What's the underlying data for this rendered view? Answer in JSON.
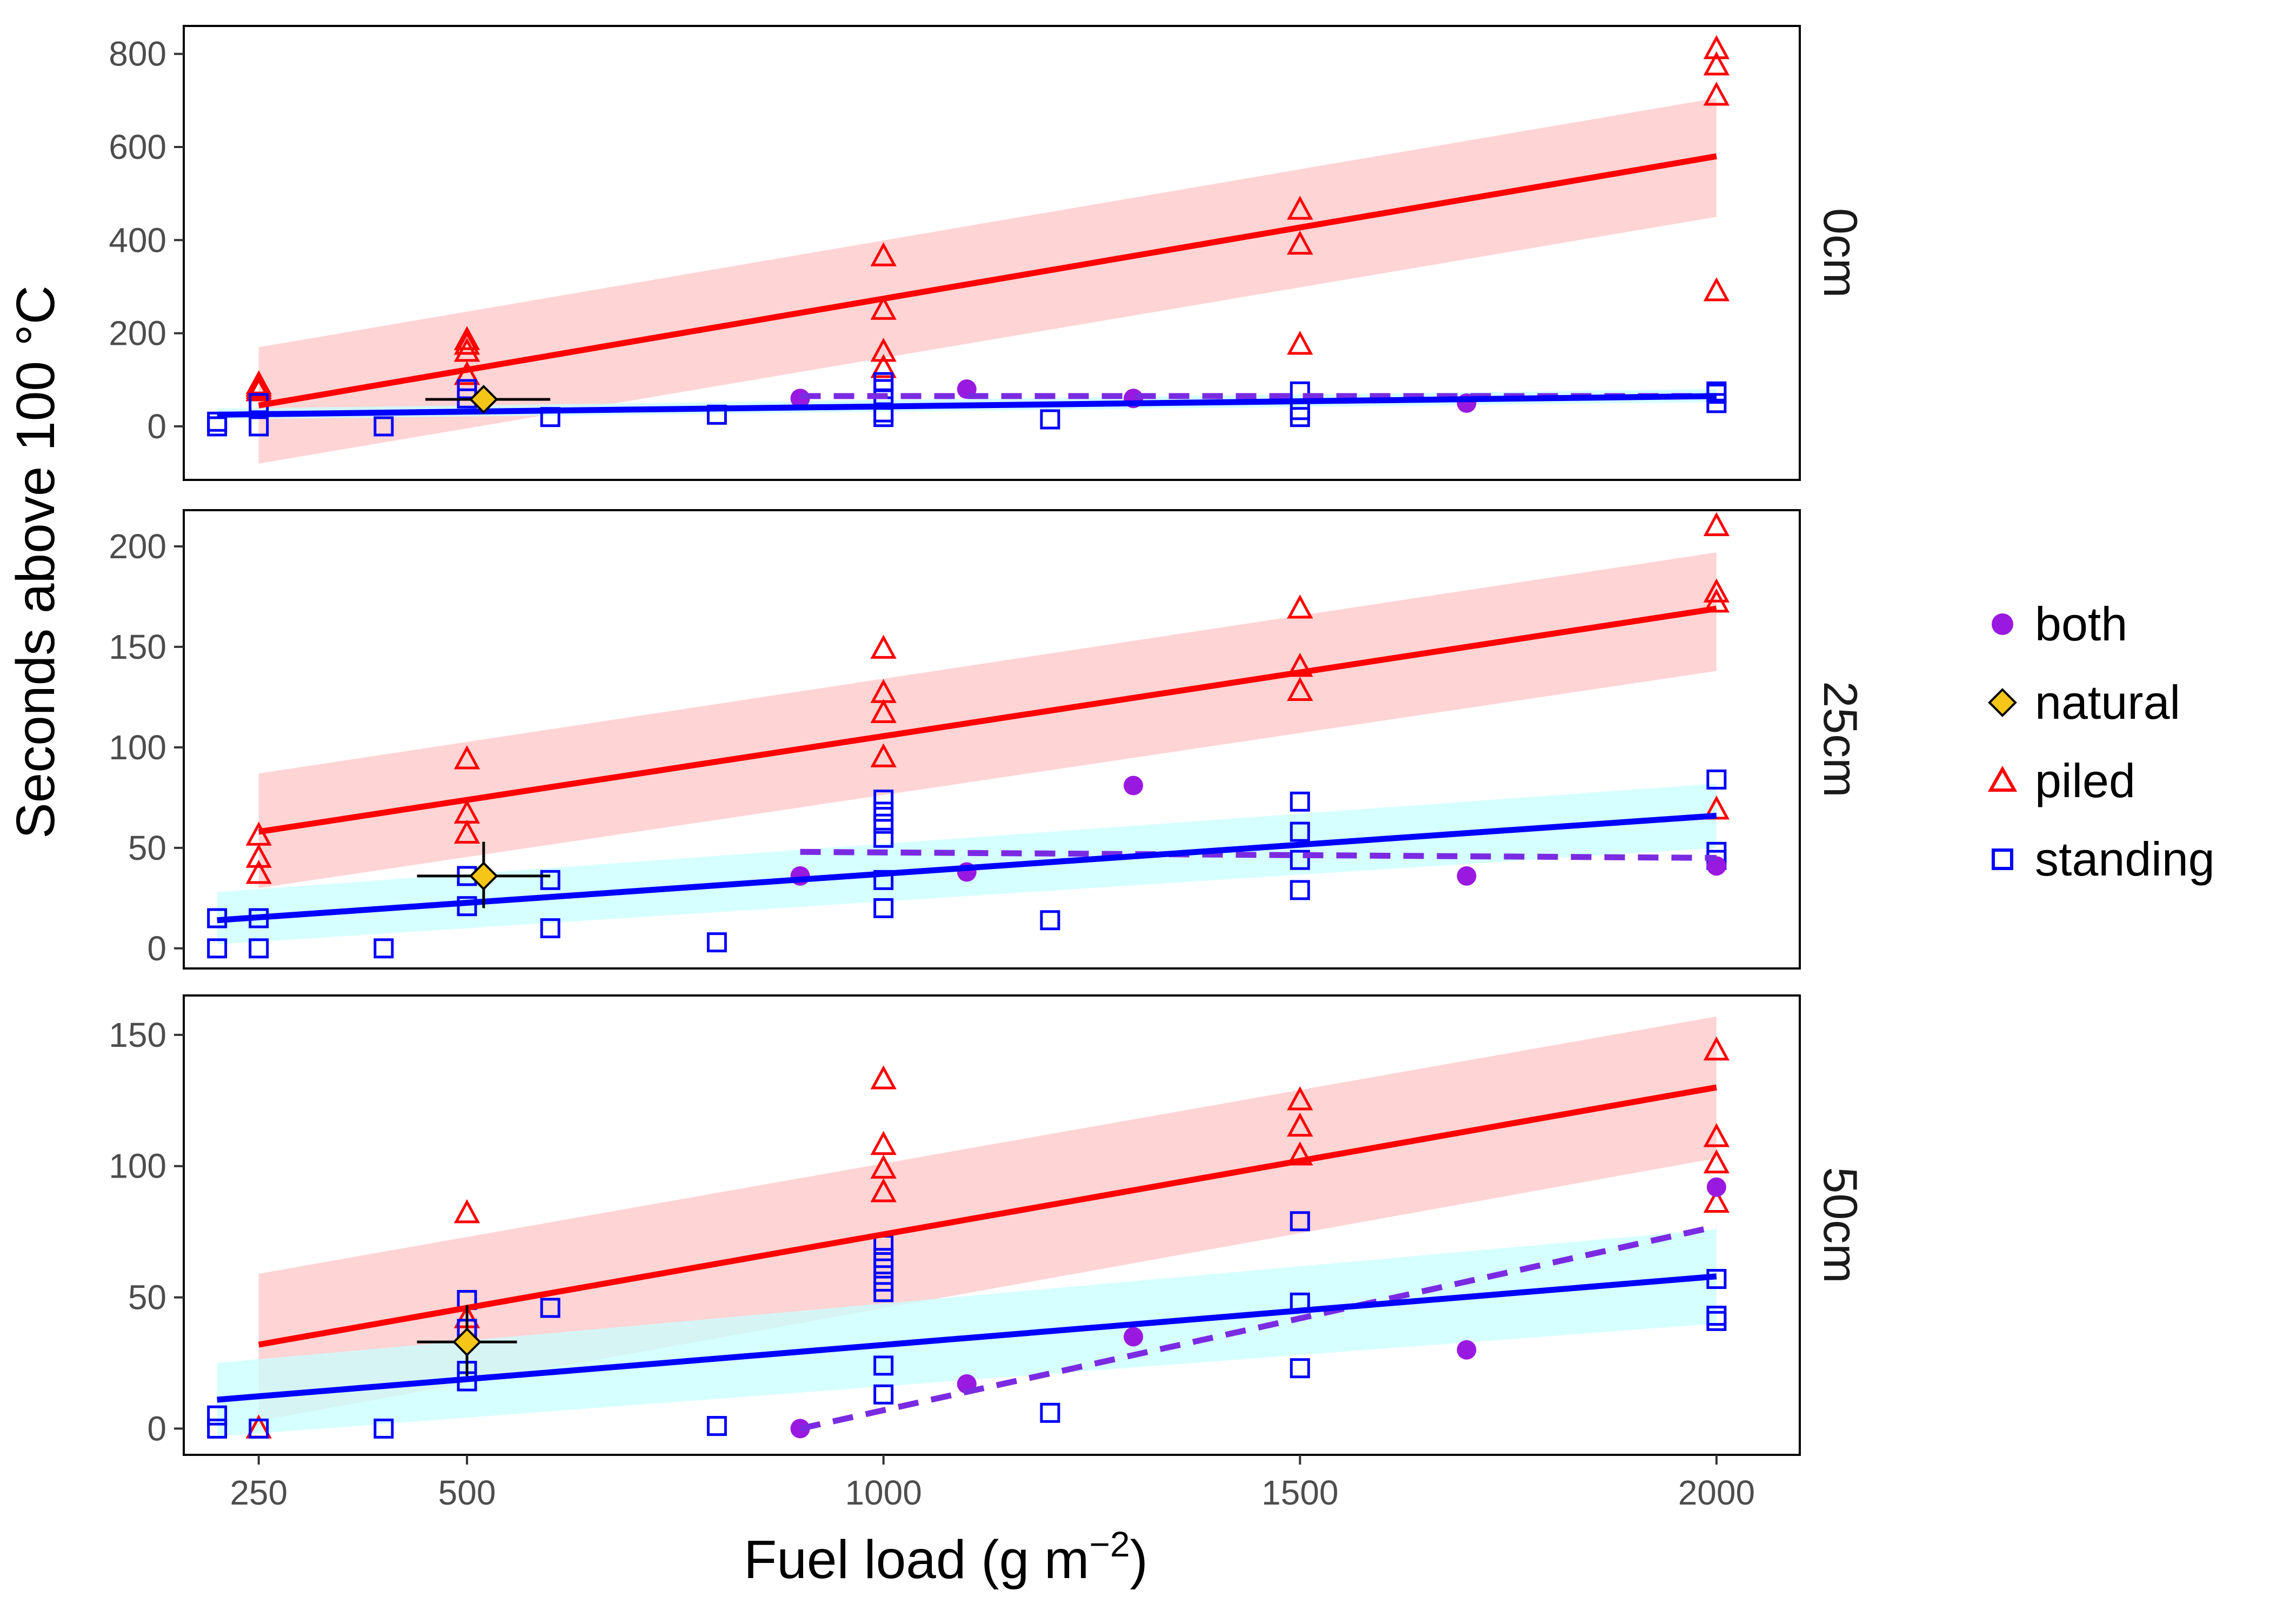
{
  "chart_data": {
    "type": "scatter",
    "facet_variable": "height",
    "xlabel": "Fuel load (g m",
    "xlabel_sup": "−2",
    "xlabel_end": ")",
    "ylabel": "Seconds above 100 °C",
    "xlim": [
      160,
      2100
    ],
    "x_ticks": [
      250,
      500,
      1000,
      1500,
      2000
    ],
    "grid": false,
    "legend_position": "right",
    "legend": [
      {
        "label": "both",
        "series": "both",
        "color": "#9a19e0",
        "shape": "circle"
      },
      {
        "label": "natural",
        "series": "natural",
        "color": "#f5c518",
        "shape": "diamond"
      },
      {
        "label": "piled",
        "series": "piled",
        "color": "#ff0000",
        "shape": "triangle"
      },
      {
        "label": "standing",
        "series": "standing",
        "color": "#0000ff",
        "shape": "square"
      }
    ],
    "colors": {
      "piled_line": "#ff0000",
      "piled_band": "#ffc6c6",
      "standing_line": "#0000ff",
      "standing_band": "#c8ffff",
      "both_line": "#7a2be2",
      "both_point": "#9a19e0",
      "natural_fill": "#f5c518"
    },
    "panels": [
      {
        "strip_label": "0cm",
        "ylim": [
          -115,
          860
        ],
        "y_ticks": [
          0,
          200,
          400,
          600,
          800
        ],
        "piled_fit": {
          "x": [
            250,
            2000
          ],
          "y": [
            45,
            580
          ],
          "band_lower": [
            -80,
            450
          ],
          "band_upper": [
            170,
            705
          ]
        },
        "standing_fit": {
          "x": [
            200,
            2000
          ],
          "y": [
            25,
            65
          ],
          "band_lower": [
            15,
            52
          ],
          "band_upper": [
            38,
            80
          ]
        },
        "both_fit": {
          "x": [
            900,
            2000
          ],
          "y": [
            65,
            65
          ]
        },
        "piled": [
          [
            250,
            75
          ],
          [
            250,
            80
          ],
          [
            250,
            85
          ],
          [
            250,
            90
          ],
          [
            500,
            110
          ],
          [
            500,
            160
          ],
          [
            500,
            175
          ],
          [
            500,
            185
          ],
          [
            1000,
            125
          ],
          [
            1000,
            160
          ],
          [
            1000,
            250
          ],
          [
            1000,
            365
          ],
          [
            1500,
            175
          ],
          [
            1500,
            390
          ],
          [
            1500,
            465
          ],
          [
            2000,
            290
          ],
          [
            2000,
            710
          ],
          [
            2000,
            775
          ],
          [
            2000,
            810
          ]
        ],
        "standing": [
          [
            200,
            0
          ],
          [
            200,
            10
          ],
          [
            250,
            0
          ],
          [
            250,
            50
          ],
          [
            400,
            0
          ],
          [
            500,
            60
          ],
          [
            500,
            80
          ],
          [
            600,
            20
          ],
          [
            800,
            25
          ],
          [
            1000,
            20
          ],
          [
            1000,
            30
          ],
          [
            1000,
            60
          ],
          [
            1000,
            80
          ],
          [
            1000,
            95
          ],
          [
            1200,
            15
          ],
          [
            1500,
            20
          ],
          [
            1500,
            35
          ],
          [
            1500,
            75
          ],
          [
            2000,
            50
          ],
          [
            2000,
            70
          ],
          [
            2000,
            75
          ]
        ],
        "both": [
          [
            900,
            60
          ],
          [
            1100,
            80
          ],
          [
            1300,
            60
          ],
          [
            1700,
            50
          ]
        ],
        "natural": {
          "x": 520,
          "y": 58,
          "x_low": 450,
          "x_high": 600,
          "y_low": 45,
          "y_high": 70
        }
      },
      {
        "strip_label": "25cm",
        "ylim": [
          -10,
          218
        ],
        "y_ticks": [
          0,
          50,
          100,
          150,
          200
        ],
        "piled_fit": {
          "x": [
            250,
            2000
          ],
          "y": [
            58,
            169
          ],
          "band_lower": [
            30,
            138
          ],
          "band_upper": [
            87,
            197
          ]
        },
        "standing_fit": {
          "x": [
            200,
            2000
          ],
          "y": [
            14,
            66
          ],
          "band_lower": [
            2,
            50
          ],
          "band_upper": [
            28,
            82
          ]
        },
        "both_fit": {
          "x": [
            900,
            2000
          ],
          "y": [
            48,
            45
          ]
        },
        "piled": [
          [
            250,
            37
          ],
          [
            250,
            45
          ],
          [
            250,
            56
          ],
          [
            500,
            57
          ],
          [
            500,
            67
          ],
          [
            500,
            94
          ],
          [
            1000,
            95
          ],
          [
            1000,
            117
          ],
          [
            1000,
            127
          ],
          [
            1000,
            149
          ],
          [
            1500,
            128
          ],
          [
            1500,
            140
          ],
          [
            1500,
            169
          ],
          [
            2000,
            69
          ],
          [
            2000,
            172
          ],
          [
            2000,
            177
          ],
          [
            2000,
            210
          ]
        ],
        "standing": [
          [
            200,
            0
          ],
          [
            200,
            15
          ],
          [
            250,
            0
          ],
          [
            250,
            15
          ],
          [
            400,
            0
          ],
          [
            500,
            21
          ],
          [
            500,
            36
          ],
          [
            600,
            10
          ],
          [
            600,
            34
          ],
          [
            800,
            3
          ],
          [
            1000,
            20
          ],
          [
            1000,
            34
          ],
          [
            1000,
            55
          ],
          [
            1000,
            62
          ],
          [
            1000,
            68
          ],
          [
            1000,
            74
          ],
          [
            1200,
            14
          ],
          [
            1500,
            29
          ],
          [
            1500,
            44
          ],
          [
            1500,
            58
          ],
          [
            1500,
            73
          ],
          [
            2000,
            44
          ],
          [
            2000,
            48
          ],
          [
            2000,
            84
          ]
        ],
        "both": [
          [
            900,
            36
          ],
          [
            1100,
            38
          ],
          [
            1300,
            81
          ],
          [
            1700,
            36
          ],
          [
            2000,
            41
          ]
        ],
        "natural": {
          "x": 520,
          "y": 36,
          "x_low": 440,
          "x_high": 600,
          "y_low": 20,
          "y_high": 53
        }
      },
      {
        "strip_label": "50cm",
        "ylim": [
          -10,
          165
        ],
        "y_ticks": [
          0,
          50,
          100,
          150
        ],
        "piled_fit": {
          "x": [
            250,
            2000
          ],
          "y": [
            32,
            130
          ],
          "band_lower": [
            3,
            103
          ],
          "band_upper": [
            59,
            157
          ]
        },
        "standing_fit": {
          "x": [
            200,
            2000
          ],
          "y": [
            11,
            58
          ],
          "band_lower": [
            -3,
            40
          ],
          "band_upper": [
            25,
            76
          ]
        },
        "both_fit": {
          "x": [
            900,
            2000
          ],
          "y": [
            0,
            77
          ]
        },
        "piled": [
          [
            250,
            0
          ],
          [
            500,
            42
          ],
          [
            500,
            82
          ],
          [
            1000,
            90
          ],
          [
            1000,
            99
          ],
          [
            1000,
            108
          ],
          [
            1000,
            133
          ],
          [
            1500,
            104
          ],
          [
            1500,
            115
          ],
          [
            1500,
            125
          ],
          [
            2000,
            86
          ],
          [
            2000,
            101
          ],
          [
            2000,
            111
          ],
          [
            2000,
            144
          ]
        ],
        "standing": [
          [
            200,
            0
          ],
          [
            200,
            5
          ],
          [
            250,
            0
          ],
          [
            400,
            0
          ],
          [
            500,
            18
          ],
          [
            500,
            22
          ],
          [
            500,
            38
          ],
          [
            500,
            49
          ],
          [
            600,
            46
          ],
          [
            800,
            1
          ],
          [
            1000,
            13
          ],
          [
            1000,
            24
          ],
          [
            1000,
            52
          ],
          [
            1000,
            56
          ],
          [
            1000,
            61
          ],
          [
            1000,
            65
          ],
          [
            1000,
            70
          ],
          [
            1200,
            6
          ],
          [
            1500,
            23
          ],
          [
            1500,
            48
          ],
          [
            1500,
            79
          ],
          [
            2000,
            41
          ],
          [
            2000,
            43
          ],
          [
            2000,
            57
          ]
        ],
        "both": [
          [
            900,
            0
          ],
          [
            1100,
            17
          ],
          [
            1300,
            35
          ],
          [
            1700,
            30
          ],
          [
            2000,
            92
          ]
        ],
        "natural": {
          "x": 500,
          "y": 33,
          "x_low": 440,
          "x_high": 560,
          "y_low": 20,
          "y_high": 47
        }
      }
    ]
  }
}
